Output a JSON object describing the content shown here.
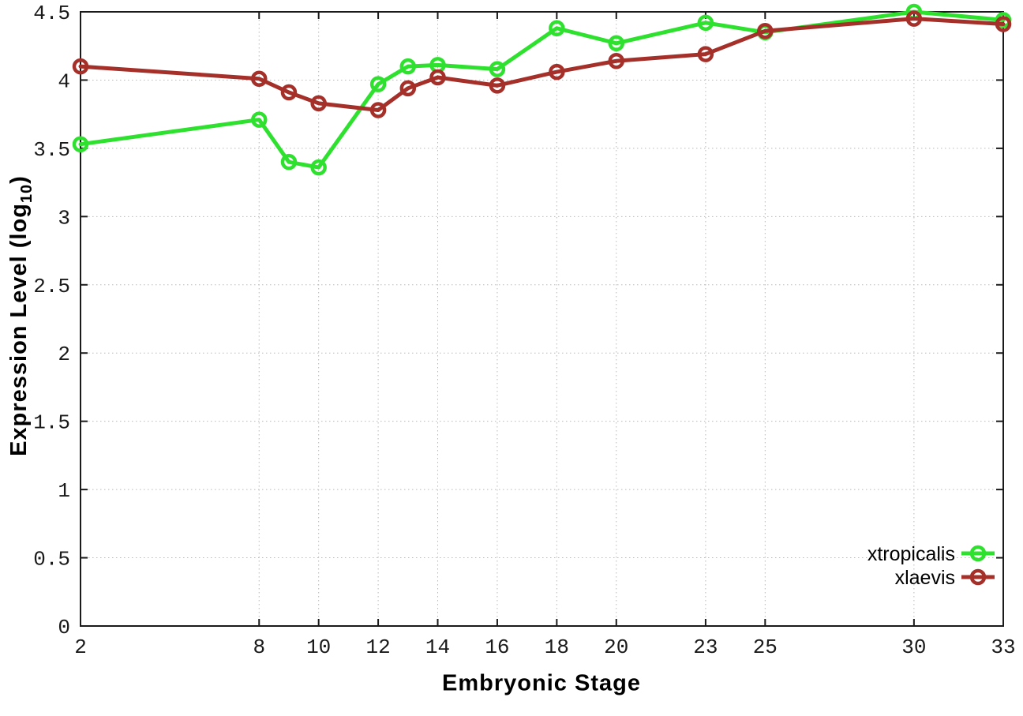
{
  "figure": {
    "xlabel": "Embryonic Stage",
    "ylabel_prefix": "Expression Level (log",
    "ylabel_subscript": "10",
    "ylabel_suffix": ")"
  },
  "chart_data": {
    "type": "line",
    "title": "",
    "xlabel": "Embryonic Stage",
    "ylabel": "Expression Level (log10)",
    "x": [
      2,
      8,
      9,
      10,
      12,
      13,
      14,
      16,
      18,
      20,
      23,
      25,
      30,
      33
    ],
    "x_tick_labels": [
      2,
      8,
      10,
      12,
      14,
      16,
      18,
      20,
      23,
      25,
      30,
      33
    ],
    "y_tick_labels": [
      0,
      0.5,
      1,
      1.5,
      2,
      2.5,
      3,
      3.5,
      4,
      4.5
    ],
    "xlim": [
      2,
      33
    ],
    "ylim": [
      0,
      4.5
    ],
    "grid": true,
    "legend_position": "inside bottom right",
    "series": [
      {
        "name": "xtropicalis",
        "color": "#2ee12e",
        "values": [
          3.53,
          3.71,
          3.4,
          3.36,
          3.97,
          4.1,
          4.11,
          4.08,
          4.38,
          4.27,
          4.42,
          4.35,
          4.5,
          4.44
        ]
      },
      {
        "name": "xlaevis",
        "color": "#a5302a",
        "values": [
          4.1,
          4.01,
          3.91,
          3.83,
          3.78,
          3.94,
          4.02,
          3.96,
          4.06,
          4.14,
          4.19,
          4.36,
          4.45,
          4.41
        ]
      }
    ],
    "style": {
      "grid_color": "#b9b9b9",
      "axis_color": "#1a1a1a",
      "background": "#ffffff",
      "line_width": 5,
      "marker": "open-circle",
      "marker_radius": 8,
      "marker_stroke": 4.5
    }
  }
}
